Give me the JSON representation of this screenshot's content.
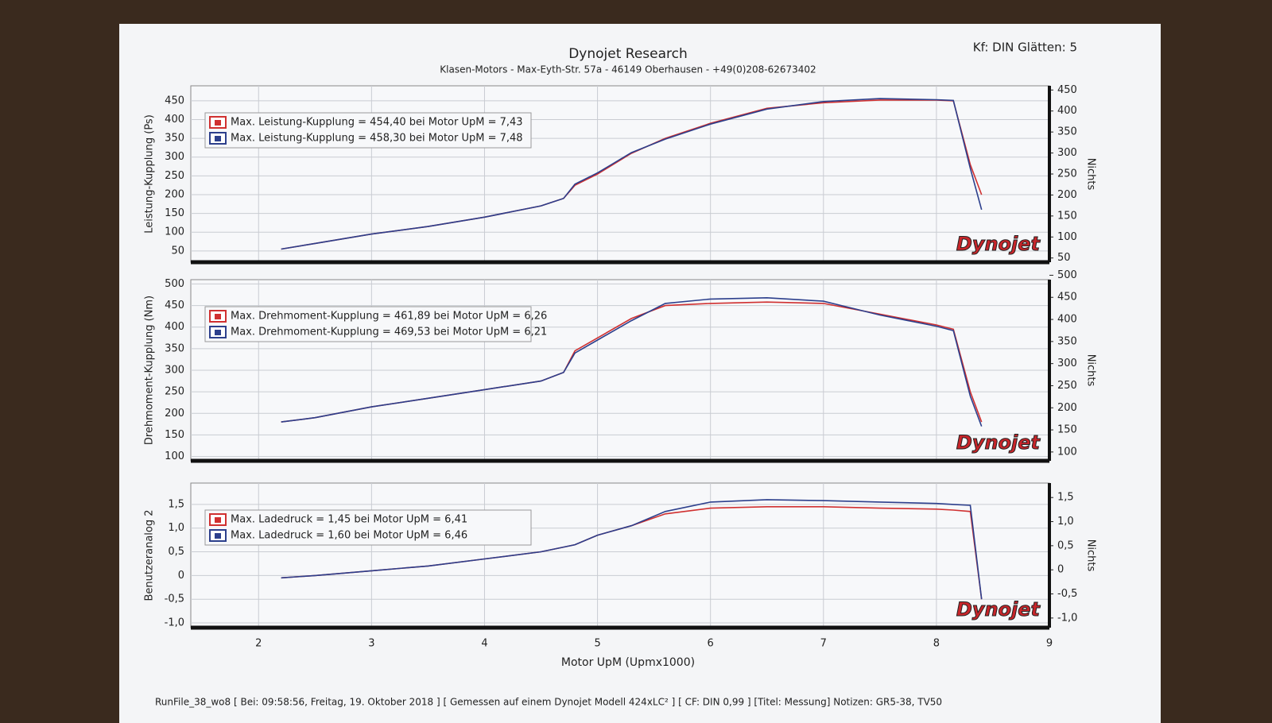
{
  "header": {
    "title": "Dynojet Research",
    "subtitle": "Klasen-Motors   -   Max-Eyth-Str. 57a   -   46149 Oberhausen   -   +49(0)208-62673402",
    "settings": "Kf: DIN Glätten: 5"
  },
  "logo": "Dynojet",
  "footer": "RunFile_38_wo8 [ Bei: 09:58:56, Freitag, 19. Oktober 2018 ] [ Gemessen auf einem Dynojet Modell 424xLC² ] [ CF: DIN 0,99 ] [Titel: Messung]  Notizen: GR5-38, TV50",
  "chart_data": [
    {
      "type": "line",
      "y_label": "Leistung-Kupplung (Ps)",
      "y2_label": "Nichts",
      "grid": true,
      "x": [
        2.2,
        2.5,
        3,
        3.5,
        4,
        4.5,
        4.7,
        4.8,
        5,
        5.3,
        5.6,
        6,
        6.5,
        7,
        7.5,
        8,
        8.15,
        8.3,
        8.4
      ],
      "xlim": [
        1.4,
        9.0
      ],
      "ylim": [
        20,
        490
      ],
      "yticks": [
        50,
        100,
        150,
        200,
        250,
        300,
        350,
        400,
        450
      ],
      "y2lim": [
        40,
        460
      ],
      "y2ticks": [
        50,
        100,
        150,
        200,
        250,
        300,
        350,
        400,
        450
      ],
      "series": [
        {
          "name": "Max. Leistung-Kupplung = 454,40 bei Motor UpM = 7,43",
          "color": "#d03030",
          "values": [
            55,
            70,
            95,
            115,
            140,
            170,
            190,
            225,
            255,
            310,
            350,
            390,
            430,
            445,
            452,
            452,
            450,
            280,
            200
          ]
        },
        {
          "name": "Max. Leistung-Kupplung = 458,30 bei Motor UpM = 7,48",
          "color": "#2c3f8c",
          "values": [
            55,
            70,
            95,
            115,
            140,
            170,
            190,
            228,
            258,
            312,
            348,
            388,
            428,
            448,
            456,
            453,
            451,
            270,
            160
          ]
        }
      ]
    },
    {
      "type": "line",
      "y_label": "Drehmoment-Kupplung (Nm)",
      "y2_label": "Nichts",
      "grid": true,
      "x": [
        2.2,
        2.5,
        3,
        3.5,
        4,
        4.5,
        4.7,
        4.8,
        5,
        5.3,
        5.6,
        6,
        6.5,
        7,
        7.5,
        8,
        8.15,
        8.3,
        8.4
      ],
      "xlim": [
        1.4,
        9.0
      ],
      "ylim": [
        90,
        510
      ],
      "yticks": [
        100,
        150,
        200,
        250,
        300,
        350,
        400,
        450,
        500
      ],
      "y2lim": [
        80,
        490
      ],
      "y2ticks": [
        100,
        150,
        200,
        250,
        300,
        350,
        400,
        450,
        500
      ],
      "series": [
        {
          "name": "Max. Drehmoment-Kupplung = 461,89 bei Motor UpM = 6,26",
          "color": "#d03030",
          "values": [
            180,
            190,
            215,
            235,
            255,
            275,
            295,
            345,
            375,
            420,
            450,
            455,
            458,
            455,
            430,
            405,
            395,
            250,
            180
          ]
        },
        {
          "name": "Max. Drehmoment-Kupplung = 469,53 bei Motor UpM = 6,21",
          "color": "#2c3f8c",
          "values": [
            180,
            190,
            215,
            235,
            255,
            275,
            295,
            340,
            370,
            415,
            455,
            465,
            468,
            460,
            428,
            402,
            392,
            240,
            170
          ]
        }
      ]
    },
    {
      "type": "line",
      "y_label": "Benutzeranalog 2",
      "y2_label": "Nichts",
      "x_label": "Motor UpM (Upmx1000)",
      "grid": true,
      "x": [
        2.2,
        2.5,
        3,
        3.5,
        4,
        4.5,
        4.7,
        4.8,
        5,
        5.3,
        5.6,
        6,
        6.5,
        7,
        7.5,
        8,
        8.15,
        8.3,
        8.4
      ],
      "xlim": [
        1.4,
        9.0
      ],
      "xticks": [
        2,
        3,
        4,
        5,
        6,
        7,
        8,
        9
      ],
      "ylim": [
        -1.1,
        1.95
      ],
      "yticks": [
        {
          "value": -1,
          "label": "-1,0"
        },
        {
          "value": -0.5,
          "label": "-0,5"
        },
        0,
        {
          "value": 0.5,
          "label": "0,5"
        },
        {
          "value": 1,
          "label": "1,0"
        },
        {
          "value": 1.5,
          "label": "1,5"
        }
      ],
      "y2lim": [
        -1.2,
        1.8
      ],
      "y2ticks": [
        {
          "value": -1,
          "label": "-1,0"
        },
        {
          "value": -0.5,
          "label": "-0,5"
        },
        0,
        {
          "value": 0.5,
          "label": "0,5"
        },
        {
          "value": 1,
          "label": "1,0"
        },
        {
          "value": 1.5,
          "label": "1,5"
        }
      ],
      "series": [
        {
          "name": "Max. Ladedruck = 1,45 bei Motor UpM = 6,41",
          "color": "#d03030",
          "values": [
            -0.05,
            0,
            0.1,
            0.2,
            0.35,
            0.5,
            0.6,
            0.65,
            0.85,
            1.05,
            1.3,
            1.42,
            1.45,
            1.45,
            1.42,
            1.4,
            1.38,
            1.35,
            -0.5
          ]
        },
        {
          "name": "Max. Ladedruck = 1,60 bei Motor UpM = 6,46",
          "color": "#2c3f8c",
          "values": [
            -0.05,
            0,
            0.1,
            0.2,
            0.35,
            0.5,
            0.6,
            0.65,
            0.85,
            1.05,
            1.35,
            1.55,
            1.6,
            1.58,
            1.55,
            1.52,
            1.5,
            1.48,
            -0.5
          ]
        }
      ]
    }
  ]
}
